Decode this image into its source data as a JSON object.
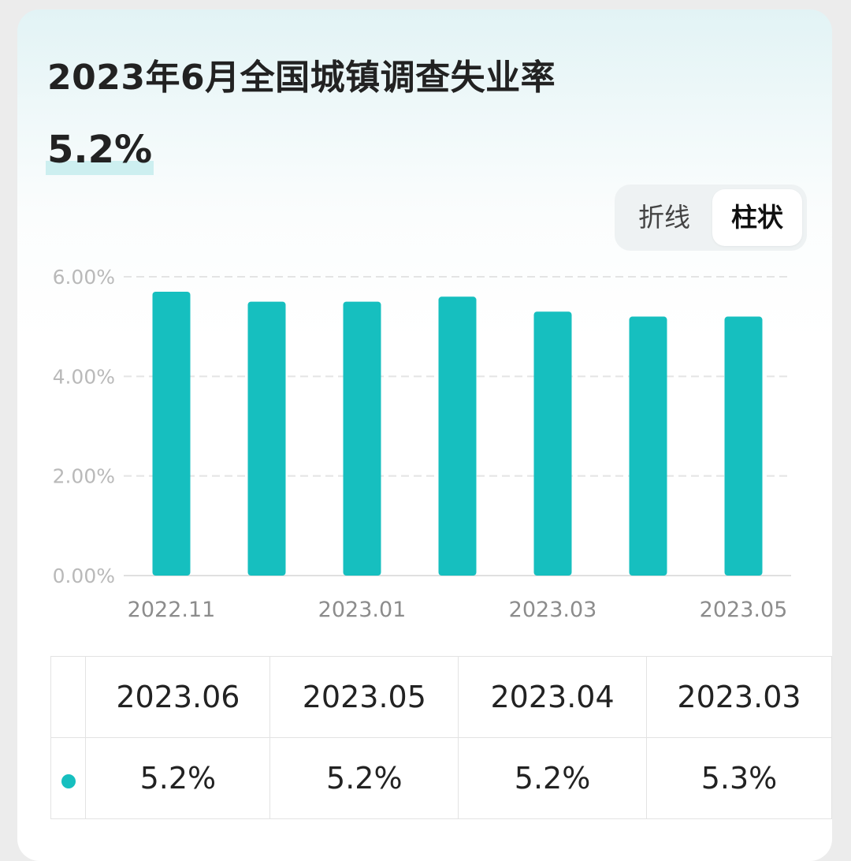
{
  "header": {
    "title": "2023年6月全国城镇调查失业率",
    "value": "5.2%"
  },
  "toggle": {
    "line_label": "折线",
    "bar_label": "柱状",
    "active": "bar"
  },
  "colors": {
    "bar": "#16bfbf",
    "grid": "#e4e4e4",
    "axis_text": "#b9b9b9",
    "x_text": "#8c8c8c"
  },
  "chart_data": {
    "type": "bar",
    "categories": [
      "2022.11",
      "2022.12",
      "2023.01",
      "2023.02",
      "2023.03",
      "2023.04",
      "2023.05"
    ],
    "values": [
      5.7,
      5.5,
      5.5,
      5.6,
      5.3,
      5.2,
      5.2
    ],
    "x_tick_labels": [
      "2022.11",
      "2023.01",
      "2023.03",
      "2023.05"
    ],
    "y_ticks": [
      "0.00%",
      "2.00%",
      "4.00%",
      "6.00%"
    ],
    "ylim": [
      0,
      6
    ],
    "grid": true,
    "title": "",
    "xlabel": "",
    "ylabel": ""
  },
  "table": {
    "headers": [
      "2023.06",
      "2023.05",
      "2023.04",
      "2023.03"
    ],
    "values": [
      "5.2%",
      "5.2%",
      "5.2%",
      "5.3%"
    ]
  }
}
